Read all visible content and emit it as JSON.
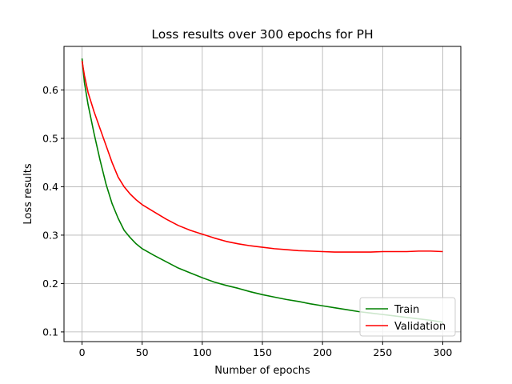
{
  "chart_data": {
    "type": "line",
    "title": "Loss results over 300 epochs for PH",
    "xlabel": "Number of epochs",
    "ylabel": "Loss results",
    "xlim": [
      -15,
      315
    ],
    "ylim": [
      0.08,
      0.69
    ],
    "xticks": [
      0,
      50,
      100,
      150,
      200,
      250,
      300
    ],
    "yticks": [
      0.1,
      0.2,
      0.3,
      0.4,
      0.5,
      0.6
    ],
    "ytick_labels": [
      "0.1",
      "0.2",
      "0.3",
      "0.4",
      "0.5",
      "0.6"
    ],
    "grid": true,
    "legend_position": "lower-right",
    "series": [
      {
        "name": "Train",
        "color": "#008000",
        "x": [
          0,
          2,
          5,
          10,
          15,
          20,
          25,
          30,
          35,
          40,
          45,
          50,
          60,
          70,
          80,
          90,
          100,
          110,
          120,
          130,
          140,
          150,
          160,
          170,
          180,
          190,
          200,
          210,
          220,
          230,
          240,
          250,
          260,
          270,
          280,
          290,
          300
        ],
        "y": [
          0.665,
          0.615,
          0.57,
          0.51,
          0.455,
          0.405,
          0.365,
          0.335,
          0.31,
          0.295,
          0.282,
          0.272,
          0.258,
          0.245,
          0.232,
          0.222,
          0.212,
          0.203,
          0.196,
          0.19,
          0.183,
          0.177,
          0.172,
          0.167,
          0.163,
          0.158,
          0.154,
          0.15,
          0.146,
          0.142,
          0.139,
          0.136,
          0.133,
          0.13,
          0.127,
          0.124,
          0.12
        ]
      },
      {
        "name": "Validation",
        "color": "#ff0000",
        "x": [
          0,
          2,
          5,
          10,
          15,
          20,
          25,
          30,
          35,
          40,
          45,
          50,
          60,
          70,
          80,
          90,
          100,
          110,
          120,
          130,
          140,
          150,
          160,
          170,
          180,
          190,
          200,
          210,
          220,
          230,
          240,
          250,
          260,
          270,
          280,
          290,
          300
        ],
        "y": [
          0.66,
          0.63,
          0.595,
          0.555,
          0.52,
          0.485,
          0.45,
          0.42,
          0.4,
          0.385,
          0.373,
          0.363,
          0.348,
          0.333,
          0.32,
          0.31,
          0.302,
          0.294,
          0.287,
          0.282,
          0.278,
          0.275,
          0.272,
          0.27,
          0.268,
          0.267,
          0.266,
          0.265,
          0.265,
          0.265,
          0.265,
          0.266,
          0.266,
          0.266,
          0.267,
          0.267,
          0.266
        ]
      }
    ]
  }
}
